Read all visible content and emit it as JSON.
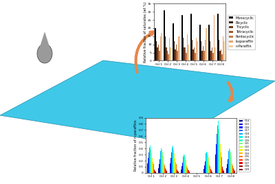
{
  "chart_data": [
    {
      "type": "bar",
      "ylabel": "Relative fraction of saturates (wt %)",
      "categories": [
        "Oil 1",
        "Oil 2",
        "Oil 3",
        "Oil 4",
        "Oil 5",
        "Oil 6",
        "Oil 7",
        "Oil 8"
      ],
      "ylim": [
        0,
        35
      ],
      "yticks": [
        0,
        5,
        10,
        15,
        20,
        25,
        30,
        35
      ],
      "legend": "right",
      "series": [
        {
          "name": "Monocyclic",
          "color": "#000000",
          "values": [
            20,
            31,
            23,
            28,
            29,
            22,
            22,
            29
          ]
        },
        {
          "name": "Bicyclic",
          "color": "#3b1e0e",
          "values": [
            12,
            15,
            12,
            14,
            13,
            12,
            12,
            13
          ]
        },
        {
          "name": "Tricyclic",
          "color": "#6e3a1c",
          "values": [
            8,
            8,
            7,
            8,
            7,
            6,
            6,
            6
          ]
        },
        {
          "name": "Tetracyclic",
          "color": "#a0582c",
          "values": [
            10,
            6,
            10,
            8,
            8,
            9,
            8,
            7
          ]
        },
        {
          "name": "Pentacyclic",
          "color": "#c97b4a",
          "values": [
            6,
            4,
            6,
            5,
            5,
            6,
            5,
            4
          ]
        },
        {
          "name": "Isoparaffin",
          "color": "#e8a270",
          "values": [
            15,
            14,
            15,
            16,
            14,
            13,
            28,
            15
          ]
        },
        {
          "name": "n-Paraffin",
          "color": "#f3c998",
          "values": [
            17,
            8,
            15,
            10,
            12,
            20,
            8,
            12
          ]
        }
      ]
    },
    {
      "type": "bar",
      "ylabel": "Relative fraction of n-paraffins",
      "categories": [
        "Oil 1",
        "Oil 2",
        "Oil 3",
        "Oil 4",
        "Oil 5",
        "Oil 6",
        "Oil 7",
        "Oil 8"
      ],
      "ylim": [
        0,
        0.9
      ],
      "yticks": [
        0,
        0.1,
        0.2,
        0.3,
        0.4,
        0.5,
        0.6,
        0.7,
        0.8,
        0.9
      ],
      "legend": "right",
      "series": [
        {
          "name": "C14",
          "color": "#00007f",
          "values": [
            0.09,
            0.08,
            0.09,
            0.06,
            0,
            0.07,
            0.17,
            0.08
          ]
        },
        {
          "name": "C15",
          "color": "#0000d5",
          "values": [
            0.16,
            0.14,
            0.16,
            0.11,
            0,
            0.12,
            0.3,
            0.14
          ]
        },
        {
          "name": "C16",
          "color": "#0010ff",
          "values": [
            0.25,
            0.22,
            0.25,
            0.17,
            0,
            0.19,
            0.47,
            0.22
          ]
        },
        {
          "name": "C17",
          "color": "#0060ff",
          "values": [
            0.34,
            0.3,
            0.34,
            0.23,
            0,
            0.26,
            0.64,
            0.3
          ]
        },
        {
          "name": "C18",
          "color": "#00acff",
          "values": [
            0.41,
            0.36,
            0.41,
            0.27,
            0,
            0.32,
            0.77,
            0.36
          ]
        },
        {
          "name": "C19",
          "color": "#00f8f0",
          "values": [
            0.45,
            0.4,
            0.45,
            0.3,
            0,
            0.35,
            0.85,
            0.4
          ]
        },
        {
          "name": "C20",
          "color": "#3affbc",
          "values": [
            0.43,
            0.38,
            0.43,
            0.29,
            0,
            0.33,
            0.81,
            0.38
          ]
        },
        {
          "name": "C21",
          "color": "#7aff7d",
          "values": [
            0.38,
            0.34,
            0.38,
            0.26,
            0,
            0.3,
            0.72,
            0.34
          ]
        },
        {
          "name": "C22",
          "color": "#bcff3a",
          "values": [
            0.32,
            0.28,
            0.32,
            0.21,
            0,
            0.25,
            0.6,
            0.28
          ]
        },
        {
          "name": "C23",
          "color": "#f4f802",
          "values": [
            0.25,
            0.22,
            0.25,
            0.17,
            0,
            0.19,
            0.47,
            0.22
          ]
        },
        {
          "name": "C24",
          "color": "#ffb900",
          "values": [
            0.18,
            0.16,
            0.18,
            0.12,
            0,
            0.14,
            0.34,
            0.16
          ]
        },
        {
          "name": "C25",
          "color": "#ff7300",
          "values": [
            0.14,
            0.12,
            0.14,
            0.09,
            0,
            0.11,
            0.26,
            0.12
          ]
        },
        {
          "name": "C26",
          "color": "#ff3000",
          "values": [
            0.09,
            0.08,
            0.09,
            0.06,
            0,
            0.07,
            0.17,
            0.08
          ]
        },
        {
          "name": "C27",
          "color": "#e80000",
          "values": [
            0.05,
            0.05,
            0.05,
            0.04,
            0,
            0.04,
            0.1,
            0.05
          ]
        },
        {
          "name": "C28",
          "color": "#a20000",
          "values": [
            0.03,
            0.03,
            0.03,
            0.02,
            0,
            0.02,
            0.06,
            0.03
          ]
        },
        {
          "name": "C29",
          "color": "#7f0000",
          "values": [
            0.02,
            0.02,
            0.02,
            0.01,
            0,
            0.01,
            0.03,
            0.02
          ]
        }
      ]
    }
  ]
}
